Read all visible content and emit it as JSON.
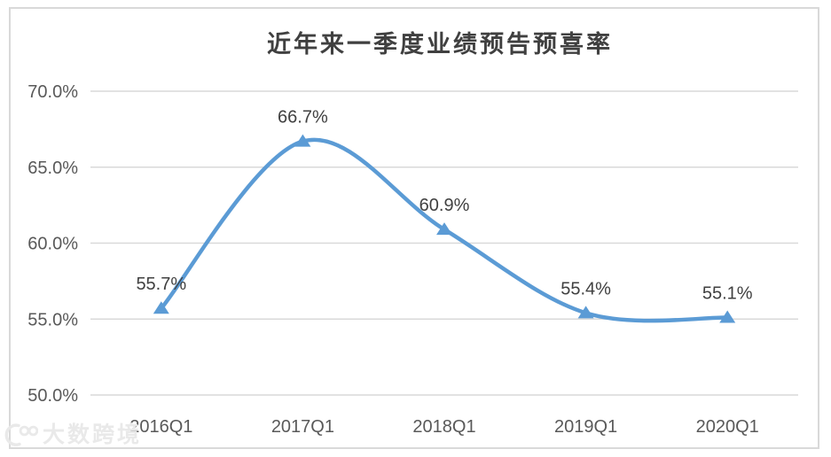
{
  "chart_data": {
    "type": "line",
    "title": "近年来一季度业绩预告预喜率",
    "categories": [
      "2016Q1",
      "2017Q1",
      "2018Q1",
      "2019Q1",
      "2020Q1"
    ],
    "series": [
      {
        "values": [
          55.7,
          66.7,
          60.9,
          55.4,
          55.1
        ],
        "labels": [
          "55.7%",
          "66.7%",
          "60.9%",
          "55.4%",
          "55.1%"
        ],
        "color": "#5B9BD5",
        "marker": "triangle-up",
        "smooth": true
      }
    ],
    "ylim": [
      50,
      70
    ],
    "yticks": {
      "values": [
        70,
        65,
        60,
        55,
        50
      ],
      "labels": [
        "70.0%",
        "65.0%",
        "60.0%",
        "55.0%",
        "50.0%"
      ]
    },
    "xlabel": "",
    "ylabel": "",
    "grid": true,
    "legend": false
  },
  "colors": {
    "line": "#5B9BD5",
    "gridline": "#D9D9D9",
    "frame_border": "#D9D9D9",
    "axis_text": "#595959",
    "data_label_text": "#404040",
    "title_text": "#404040",
    "background": "#FFFFFF",
    "watermark": "#E9E9E9"
  },
  "watermark": {
    "logo_icon": "brand-100-logo-icon",
    "text": "大数跨境"
  }
}
